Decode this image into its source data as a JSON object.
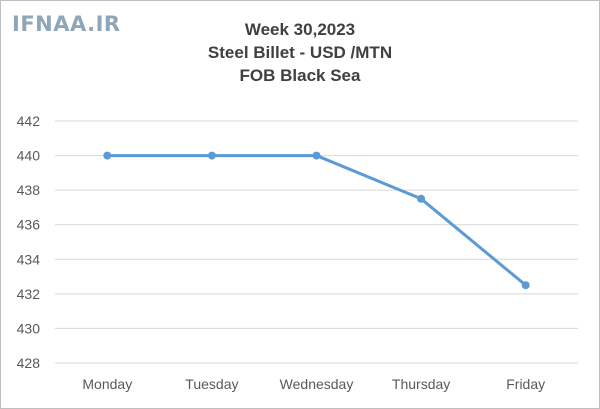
{
  "watermark": "IFNAA.IR",
  "chart_data": {
    "type": "line",
    "title": [
      "Week 30,2023",
      "Steel Billet - USD /MTN",
      "FOB Black Sea"
    ],
    "categories": [
      "Monday",
      "Tuesday",
      "Wednesday",
      "Thursday",
      "Friday"
    ],
    "series": [
      {
        "values": [
          440,
          440,
          440,
          437.5,
          432.5
        ]
      }
    ],
    "ylim": [
      428,
      442
    ],
    "yticks": [
      442,
      440,
      438,
      436,
      434,
      432,
      430,
      428
    ],
    "grid": true,
    "legend": "none",
    "colors": {
      "line": "#5b9bd5",
      "grid": "#d9d9d9",
      "text": "#595959"
    }
  }
}
